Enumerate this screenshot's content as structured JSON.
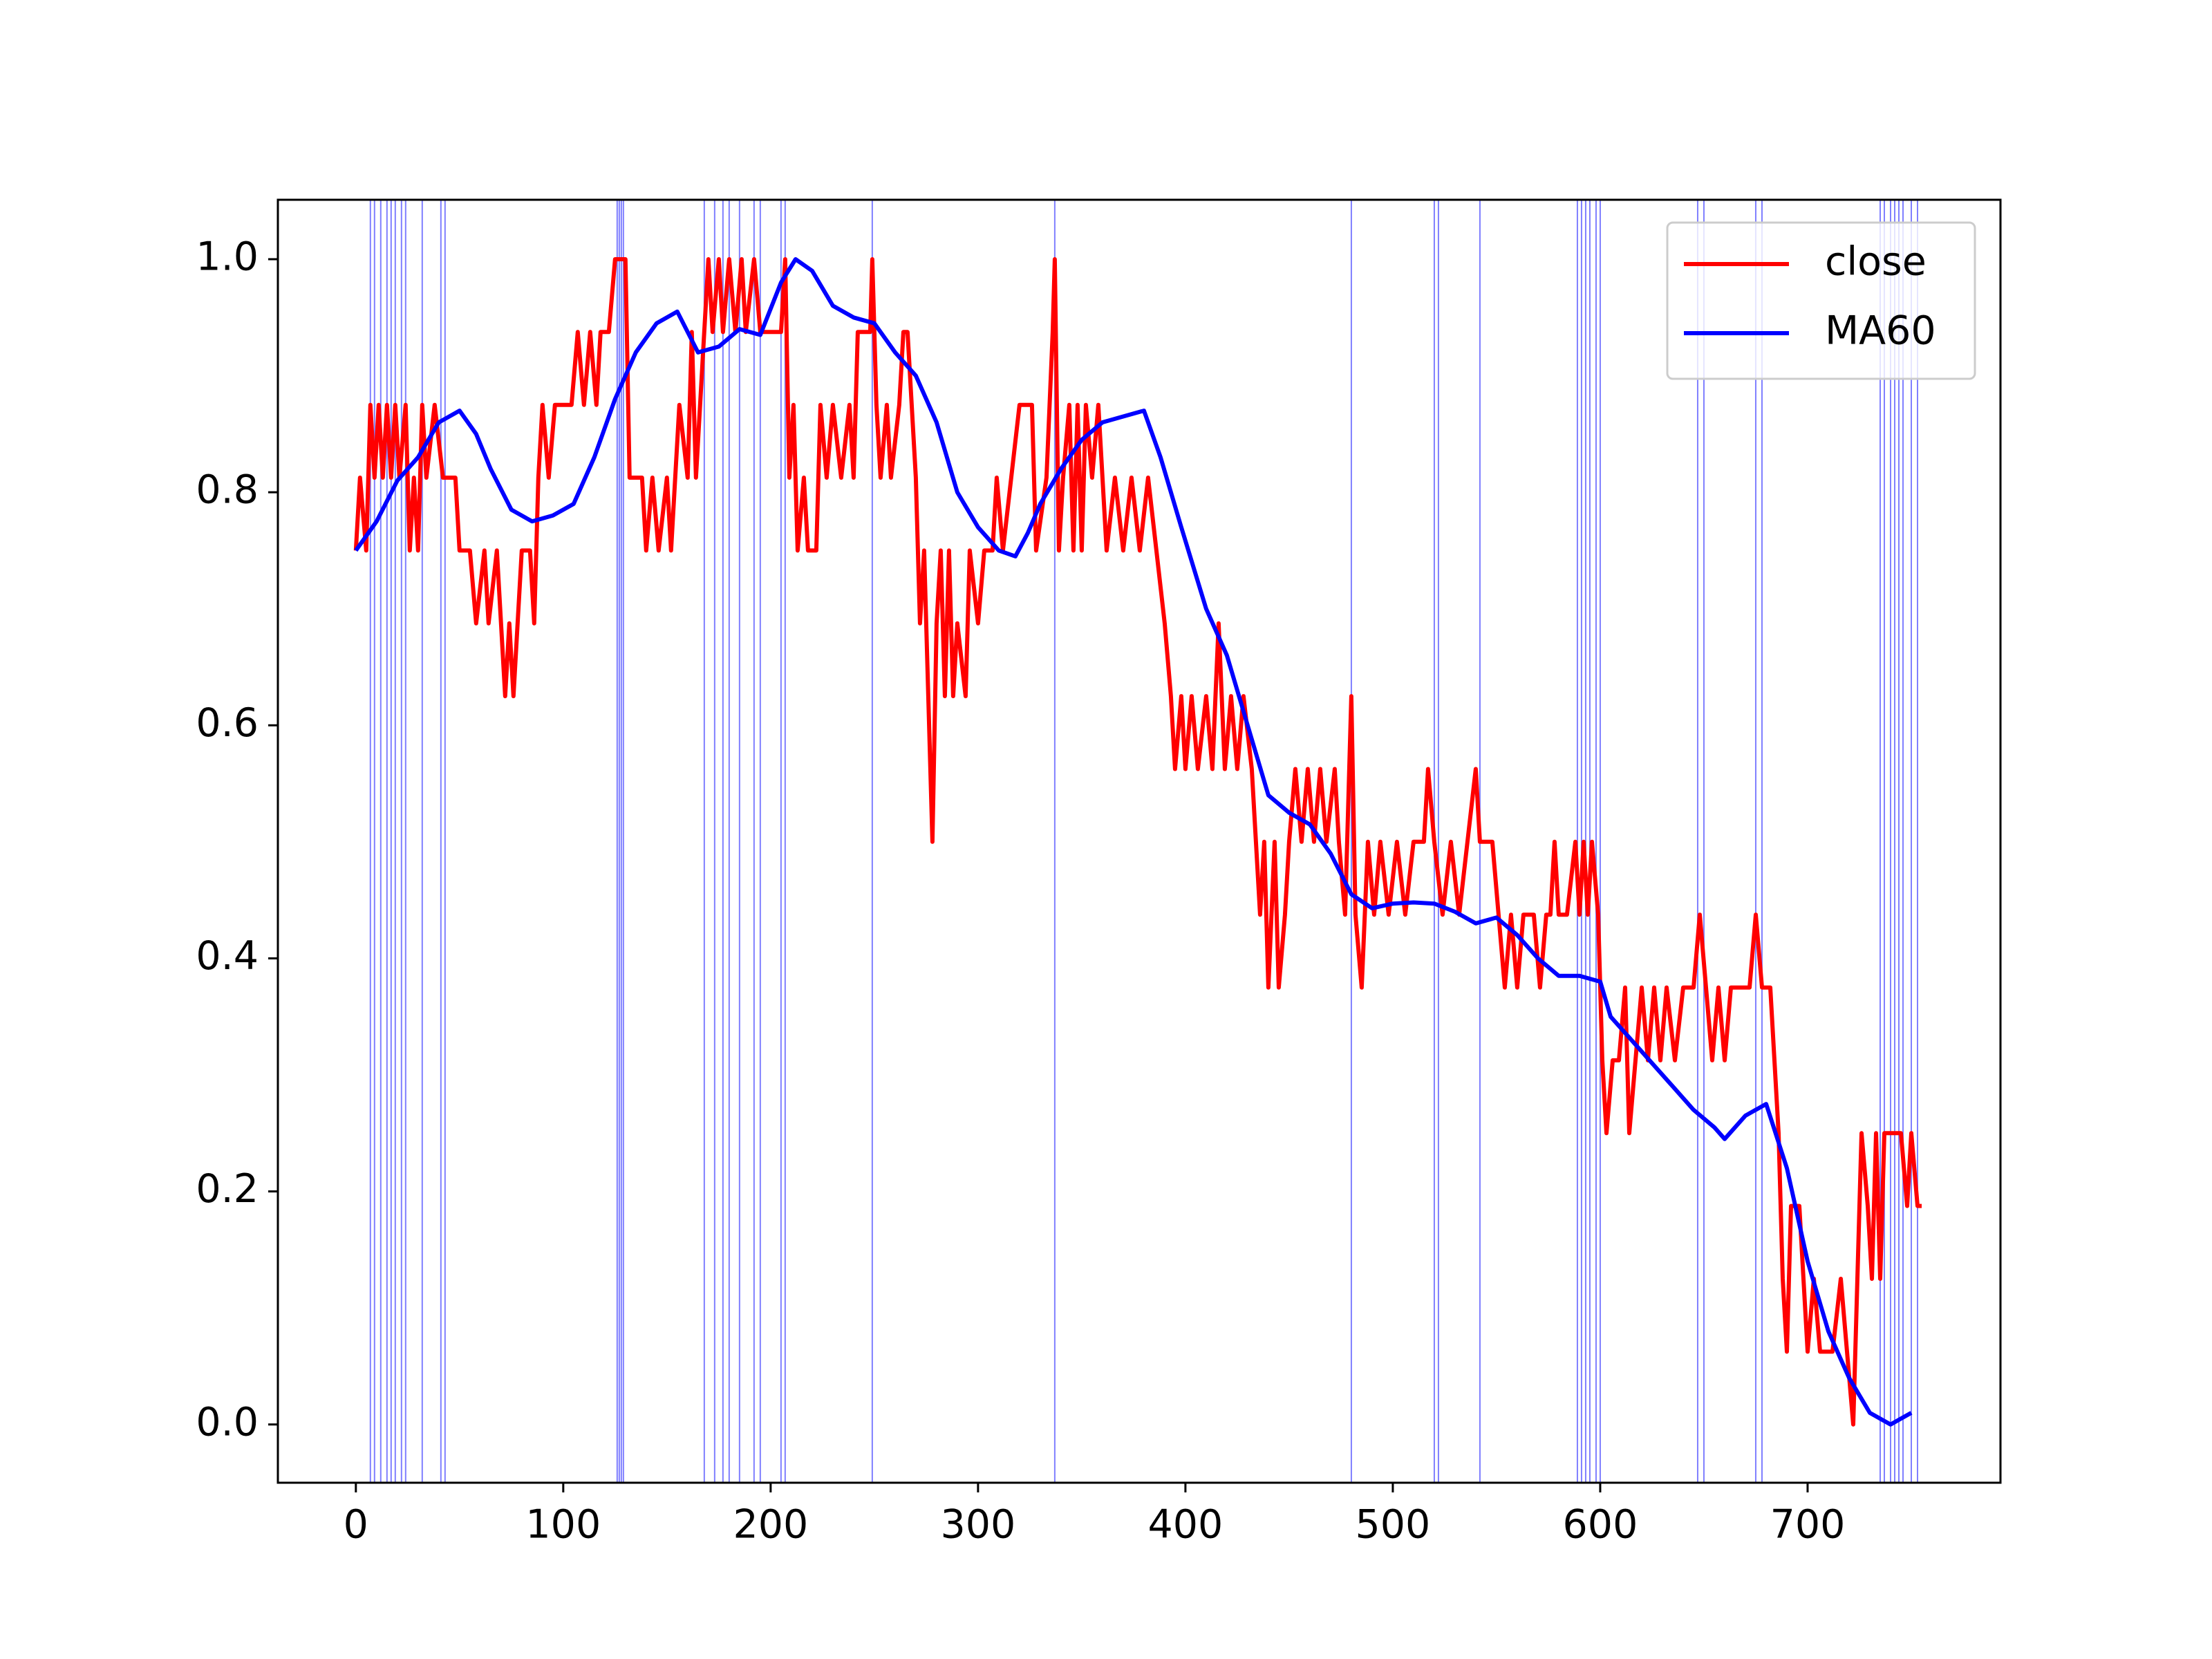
{
  "chart_data": {
    "type": "line",
    "xlim": [
      -37.6,
      793
    ],
    "ylim": [
      -0.05,
      1.051
    ],
    "xticks": [
      0,
      100,
      200,
      300,
      400,
      500,
      600,
      700
    ],
    "yticks": [
      {
        "value": 0,
        "label": "0.0"
      },
      {
        "value": 0.2,
        "label": "0.2"
      },
      {
        "value": 0.4,
        "label": "0.4"
      },
      {
        "value": 0.6,
        "label": "0.6"
      },
      {
        "value": 0.8,
        "label": "0.8"
      },
      {
        "value": 1,
        "label": "1.0"
      }
    ],
    "legend": "upper right",
    "vlines": {
      "color": "#0000ff",
      "x": [
        7,
        9,
        12,
        15,
        17,
        19,
        22,
        24,
        32,
        41,
        43,
        126,
        127,
        128,
        129,
        168,
        173,
        177,
        180,
        185,
        192,
        195,
        205,
        207,
        249,
        337,
        480,
        520,
        522,
        542,
        589,
        591,
        593,
        595,
        598,
        600,
        647,
        650,
        675,
        678,
        735,
        737,
        740,
        742,
        744,
        746,
        750,
        753
      ]
    },
    "series": [
      {
        "name": "close",
        "color": "#ff0000",
        "x": [
          0,
          2,
          5,
          7,
          9,
          11,
          13,
          15,
          17,
          19,
          21,
          24,
          26,
          28,
          30,
          32,
          34,
          38,
          42,
          48,
          50,
          55,
          58,
          62,
          64,
          68,
          70,
          72,
          74,
          76,
          78,
          80,
          84,
          86,
          88,
          90,
          93,
          96,
          100,
          104,
          107,
          110,
          113,
          116,
          118,
          122,
          125,
          130,
          132,
          138,
          140,
          143,
          146,
          150,
          152,
          154,
          156,
          160,
          162,
          164,
          166,
          168,
          170,
          172,
          175,
          177,
          180,
          183,
          186,
          188,
          192,
          195,
          200,
          205,
          207,
          209,
          211,
          213,
          216,
          218,
          222,
          224,
          227,
          230,
          234,
          238,
          240,
          242,
          248,
          249,
          251,
          253,
          256,
          258,
          262,
          264,
          266,
          270,
          272,
          274,
          276,
          278,
          280,
          282,
          284,
          286,
          288,
          290,
          294,
          296,
          300,
          303,
          307,
          309,
          312,
          316,
          320,
          326,
          328,
          333,
          336,
          337,
          339,
          341,
          344,
          346,
          348,
          350,
          352,
          355,
          358,
          362,
          366,
          370,
          374,
          378,
          382,
          386,
          390,
          393,
          395,
          398,
          400,
          403,
          406,
          410,
          413,
          416,
          419,
          422,
          425,
          428,
          432,
          434,
          436,
          438,
          440,
          443,
          445,
          448,
          450,
          453,
          456,
          459,
          462,
          465,
          468,
          472,
          474,
          477,
          480,
          482,
          485,
          488,
          491,
          494,
          498,
          502,
          506,
          510,
          515,
          517,
          520,
          524,
          528,
          532,
          536,
          540,
          542,
          548,
          551,
          554,
          557,
          560,
          563,
          568,
          571,
          574,
          576,
          578,
          580,
          584,
          588,
          590,
          592,
          594,
          596,
          599,
          601,
          603,
          606,
          609,
          612,
          614,
          617,
          620,
          623,
          626,
          629,
          632,
          636,
          640,
          645,
          648,
          651,
          654,
          657,
          660,
          663,
          668,
          672,
          675,
          678,
          682,
          684,
          686,
          688,
          690,
          692,
          696,
          698,
          700,
          703,
          706,
          712,
          716,
          719,
          722,
          724,
          726,
          729,
          731,
          733,
          735,
          737,
          740,
          745,
          748,
          750,
          753,
          755
        ],
        "values": [
          0.75,
          0.8125,
          0.75,
          0.875,
          0.8125,
          0.875,
          0.8125,
          0.875,
          0.8125,
          0.875,
          0.8125,
          0.875,
          0.75,
          0.8125,
          0.75,
          0.875,
          0.8125,
          0.875,
          0.8125,
          0.8125,
          0.75,
          0.75,
          0.6875,
          0.75,
          0.6875,
          0.75,
          0.6875,
          0.625,
          0.6875,
          0.625,
          0.6875,
          0.75,
          0.75,
          0.6875,
          0.8125,
          0.875,
          0.8125,
          0.875,
          0.875,
          0.875,
          0.9375,
          0.875,
          0.9375,
          0.875,
          0.9375,
          0.9375,
          1.0,
          1.0,
          0.8125,
          0.8125,
          0.75,
          0.8125,
          0.75,
          0.8125,
          0.75,
          0.8125,
          0.875,
          0.8125,
          0.9375,
          0.8125,
          0.875,
          0.9375,
          1.0,
          0.9375,
          1.0,
          0.9375,
          1.0,
          0.9375,
          1.0,
          0.9375,
          1.0,
          0.9375,
          0.9375,
          0.9375,
          1.0,
          0.8125,
          0.875,
          0.75,
          0.8125,
          0.75,
          0.75,
          0.875,
          0.8125,
          0.875,
          0.8125,
          0.875,
          0.8125,
          0.9375,
          0.9375,
          1.0,
          0.875,
          0.8125,
          0.875,
          0.8125,
          0.875,
          0.9375,
          0.9375,
          0.8125,
          0.6875,
          0.75,
          0.625,
          0.5,
          0.6875,
          0.75,
          0.625,
          0.75,
          0.625,
          0.6875,
          0.625,
          0.75,
          0.6875,
          0.75,
          0.75,
          0.8125,
          0.75,
          0.8125,
          0.875,
          0.875,
          0.75,
          0.8125,
          0.9375,
          1.0,
          0.75,
          0.8125,
          0.875,
          0.75,
          0.875,
          0.75,
          0.875,
          0.8125,
          0.875,
          0.75,
          0.8125,
          0.75,
          0.8125,
          0.75,
          0.8125,
          0.75,
          0.6875,
          0.625,
          0.5625,
          0.625,
          0.5625,
          0.625,
          0.5625,
          0.625,
          0.5625,
          0.6875,
          0.5625,
          0.625,
          0.5625,
          0.625,
          0.5625,
          0.5,
          0.4375,
          0.5,
          0.375,
          0.5,
          0.375,
          0.4375,
          0.5,
          0.5625,
          0.5,
          0.5625,
          0.5,
          0.5625,
          0.5,
          0.5625,
          0.5,
          0.4375,
          0.625,
          0.4375,
          0.375,
          0.5,
          0.4375,
          0.5,
          0.4375,
          0.5,
          0.4375,
          0.5,
          0.5,
          0.5625,
          0.5,
          0.4375,
          0.5,
          0.4375,
          0.5,
          0.5625,
          0.5,
          0.5,
          0.4375,
          0.375,
          0.4375,
          0.375,
          0.4375,
          0.4375,
          0.375,
          0.4375,
          0.4375,
          0.5,
          0.4375,
          0.4375,
          0.5,
          0.4375,
          0.5,
          0.4375,
          0.5,
          0.4375,
          0.3125,
          0.25,
          0.3125,
          0.3125,
          0.375,
          0.25,
          0.3125,
          0.375,
          0.3125,
          0.375,
          0.3125,
          0.375,
          0.3125,
          0.375,
          0.375,
          0.4375,
          0.375,
          0.3125,
          0.375,
          0.3125,
          0.375,
          0.375,
          0.375,
          0.4375,
          0.375,
          0.375,
          0.3125,
          0.25,
          0.125,
          0.0625,
          0.1875,
          0.1875,
          0.125,
          0.0625,
          0.125,
          0.0625,
          0.0625,
          0.125,
          0.0625,
          0.0,
          0.125,
          0.25,
          0.1875,
          0.125,
          0.25,
          0.125,
          0.25,
          0.25,
          0.25,
          0.1875,
          0.25,
          0.1875,
          0.1875
        ]
      },
      {
        "name": "MA60",
        "color": "#0000ff",
        "x": [
          0,
          10,
          20,
          30,
          40,
          50,
          58,
          65,
          75,
          85,
          95,
          105,
          115,
          125,
          135,
          145,
          155,
          165,
          175,
          185,
          195,
          205,
          212,
          220,
          230,
          240,
          250,
          260,
          270,
          280,
          290,
          300,
          310,
          318,
          324,
          330,
          340,
          350,
          360,
          370,
          380,
          388,
          398,
          410,
          420,
          430,
          440,
          450,
          460,
          470,
          480,
          490,
          500,
          510,
          520,
          530,
          540,
          550,
          560,
          570,
          580,
          590,
          600,
          605,
          615,
          625,
          635,
          645,
          655,
          660,
          670,
          680,
          690,
          700,
          710,
          720,
          730,
          740,
          745,
          750
        ],
        "values": [
          0.75,
          0.775,
          0.81,
          0.83,
          0.86,
          0.87,
          0.85,
          0.82,
          0.785,
          0.775,
          0.78,
          0.79,
          0.83,
          0.88,
          0.92,
          0.945,
          0.955,
          0.92,
          0.925,
          0.94,
          0.935,
          0.98,
          1.0,
          0.99,
          0.96,
          0.95,
          0.945,
          0.92,
          0.9,
          0.86,
          0.8,
          0.77,
          0.75,
          0.745,
          0.765,
          0.79,
          0.82,
          0.845,
          0.86,
          0.865,
          0.87,
          0.83,
          0.77,
          0.7,
          0.66,
          0.6,
          0.54,
          0.525,
          0.515,
          0.49,
          0.455,
          0.443,
          0.447,
          0.448,
          0.447,
          0.44,
          0.43,
          0.435,
          0.42,
          0.4,
          0.385,
          0.385,
          0.38,
          0.35,
          0.33,
          0.31,
          0.29,
          0.27,
          0.255,
          0.245,
          0.265,
          0.275,
          0.22,
          0.14,
          0.08,
          0.04,
          0.01,
          0.0,
          0.005,
          0.01
        ]
      }
    ]
  }
}
